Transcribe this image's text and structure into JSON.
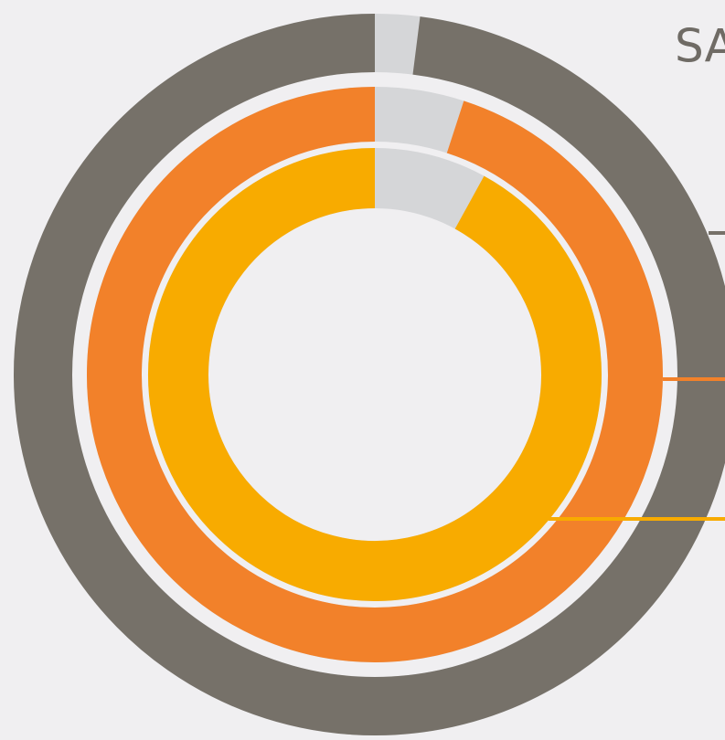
{
  "chart_data": {
    "type": "radial",
    "title": "SA",
    "values": [
      98,
      95,
      92
    ],
    "colors": [
      "#767169",
      "#f2812a",
      "#f8ab00"
    ],
    "track_color": "#d5d6d8"
  }
}
